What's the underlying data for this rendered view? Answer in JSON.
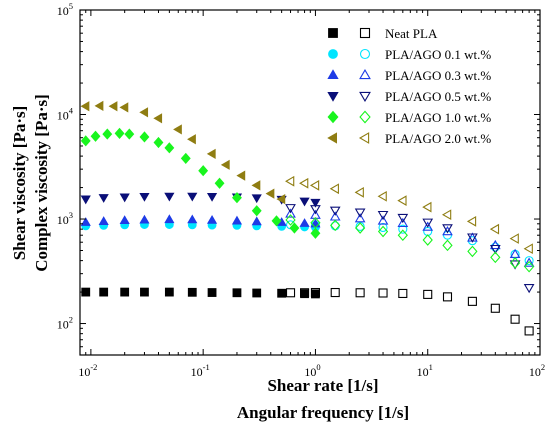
{
  "chart_data": {
    "type": "scatter",
    "xlabel": [
      "Shear rate [1/s]",
      "Angular frequency [1/s]"
    ],
    "ylabel": [
      "Shear viscosity [Pa·s]",
      "Complex viscosity [Pa·s]"
    ],
    "xscale": "log",
    "yscale": "log",
    "xlim": [
      0.008,
      100
    ],
    "ylim": [
      50,
      100000
    ],
    "x_ticks": [
      {
        "value": 0.01,
        "base": "10",
        "exp": "-2"
      },
      {
        "value": 0.1,
        "base": "10",
        "exp": "-1"
      },
      {
        "value": 1,
        "base": "10",
        "exp": "0"
      },
      {
        "value": 10,
        "base": "10",
        "exp": "1"
      },
      {
        "value": 100,
        "base": "10",
        "exp": "2"
      }
    ],
    "y_ticks": [
      {
        "value": 100,
        "base": "10",
        "exp": "2"
      },
      {
        "value": 1000,
        "base": "10",
        "exp": "3"
      },
      {
        "value": 10000,
        "base": "10",
        "exp": "4"
      },
      {
        "value": 100000,
        "base": "10",
        "exp": "5"
      }
    ],
    "legend_position": "top-right",
    "series": [
      {
        "name": "Neat PLA",
        "color": "#000000",
        "shear_marker": "square",
        "complex_marker": "square",
        "shear_x": [
          0.009,
          0.013,
          0.02,
          0.03,
          0.05,
          0.08,
          0.12,
          0.2,
          0.3,
          0.5,
          0.8,
          1.0
        ],
        "shear_y": [
          200,
          200,
          200,
          200,
          200,
          199,
          198,
          197,
          196,
          195,
          193,
          192
        ],
        "complex_x": [
          0.6,
          0.8,
          1.0,
          1.5,
          2.5,
          4,
          6,
          10,
          15,
          25,
          40,
          60,
          80
        ],
        "complex_y": [
          197,
          197,
          198,
          198,
          197,
          196,
          194,
          190,
          180,
          163,
          140,
          110,
          85
        ]
      },
      {
        "name": "PLA/AGO 0.1 wt.%",
        "color": "#00E5FF",
        "shear_marker": "circle",
        "complex_marker": "circle",
        "shear_x": [
          0.009,
          0.013,
          0.02,
          0.03,
          0.05,
          0.08,
          0.12,
          0.2,
          0.3,
          0.5,
          0.8,
          1.0
        ],
        "shear_y": [
          860,
          870,
          880,
          885,
          885,
          880,
          875,
          870,
          860,
          850,
          840,
          830
        ],
        "complex_x": [
          0.6,
          1.0,
          1.5,
          2.5,
          4,
          6,
          10,
          15,
          25,
          40,
          60,
          80
        ],
        "complex_y": [
          880,
          870,
          860,
          850,
          830,
          800,
          760,
          700,
          620,
          540,
          460,
          400
        ]
      },
      {
        "name": "PLA/AGO 0.3 wt.%",
        "color": "#1E3BE6",
        "shear_marker": "triangle-up",
        "complex_marker": "triangle-up",
        "shear_x": [
          0.009,
          0.013,
          0.02,
          0.03,
          0.05,
          0.08,
          0.12,
          0.2,
          0.3,
          0.5,
          0.8,
          1.0
        ],
        "shear_y": [
          930,
          950,
          970,
          980,
          990,
          985,
          975,
          960,
          945,
          930,
          910,
          900
        ],
        "complex_x": [
          0.6,
          1.0,
          1.5,
          2.5,
          4,
          6,
          10,
          15,
          25,
          40,
          60,
          80
        ],
        "complex_y": [
          1120,
          1090,
          1050,
          1010,
          960,
          910,
          840,
          760,
          660,
          560,
          460,
          380
        ]
      },
      {
        "name": "PLA/AGO 0.5 wt.%",
        "color": "#0A0F78",
        "shear_marker": "triangle-down",
        "complex_marker": "triangle-down",
        "shear_x": [
          0.009,
          0.013,
          0.02,
          0.03,
          0.05,
          0.08,
          0.12,
          0.2,
          0.3,
          0.5,
          0.8,
          1.0
        ],
        "shear_y": [
          1550,
          1600,
          1620,
          1640,
          1650,
          1650,
          1640,
          1620,
          1590,
          1540,
          1480,
          1440
        ],
        "complex_x": [
          0.6,
          1.0,
          1.5,
          2.5,
          4,
          6,
          10,
          15,
          25,
          40,
          60,
          80
        ],
        "complex_y": [
          1280,
          1250,
          1210,
          1160,
          1100,
          1030,
          930,
          820,
          670,
          520,
          370,
          220
        ]
      },
      {
        "name": "PLA/AGO 1.0 wt.%",
        "color": "#19F51E",
        "shear_marker": "diamond",
        "complex_marker": "diamond",
        "shear_x": [
          0.009,
          0.011,
          0.014,
          0.018,
          0.022,
          0.03,
          0.04,
          0.05,
          0.07,
          0.1,
          0.14,
          0.2,
          0.3,
          0.45,
          0.65,
          1.0
        ],
        "shear_y": [
          5600,
          6200,
          6500,
          6600,
          6500,
          6100,
          5400,
          4800,
          3800,
          2900,
          2200,
          1600,
          1200,
          960,
          820,
          730
        ],
        "complex_x": [
          0.6,
          1.0,
          1.5,
          2.5,
          4,
          6,
          10,
          15,
          25,
          40,
          60,
          80
        ],
        "complex_y": [
          980,
          920,
          870,
          820,
          760,
          700,
          630,
          560,
          490,
          430,
          380,
          350
        ]
      },
      {
        "name": "PLA/AGO 2.0 wt.%",
        "color": "#8F7D12",
        "shear_marker": "triangle-left",
        "complex_marker": "triangle-left",
        "shear_x": [
          0.009,
          0.012,
          0.016,
          0.02,
          0.03,
          0.04,
          0.06,
          0.08,
          0.12,
          0.16,
          0.22,
          0.3,
          0.4,
          0.5
        ],
        "shear_y": [
          12000,
          12100,
          12000,
          11700,
          10500,
          9200,
          7200,
          5800,
          4200,
          3300,
          2600,
          2100,
          1750,
          1550
        ],
        "complex_x": [
          0.6,
          0.8,
          1.0,
          1.5,
          2.5,
          4,
          6,
          10,
          15,
          25,
          40,
          60,
          80
        ],
        "complex_y": [
          2300,
          2200,
          2100,
          1950,
          1800,
          1650,
          1500,
          1300,
          1100,
          950,
          800,
          650,
          520
        ]
      }
    ]
  }
}
